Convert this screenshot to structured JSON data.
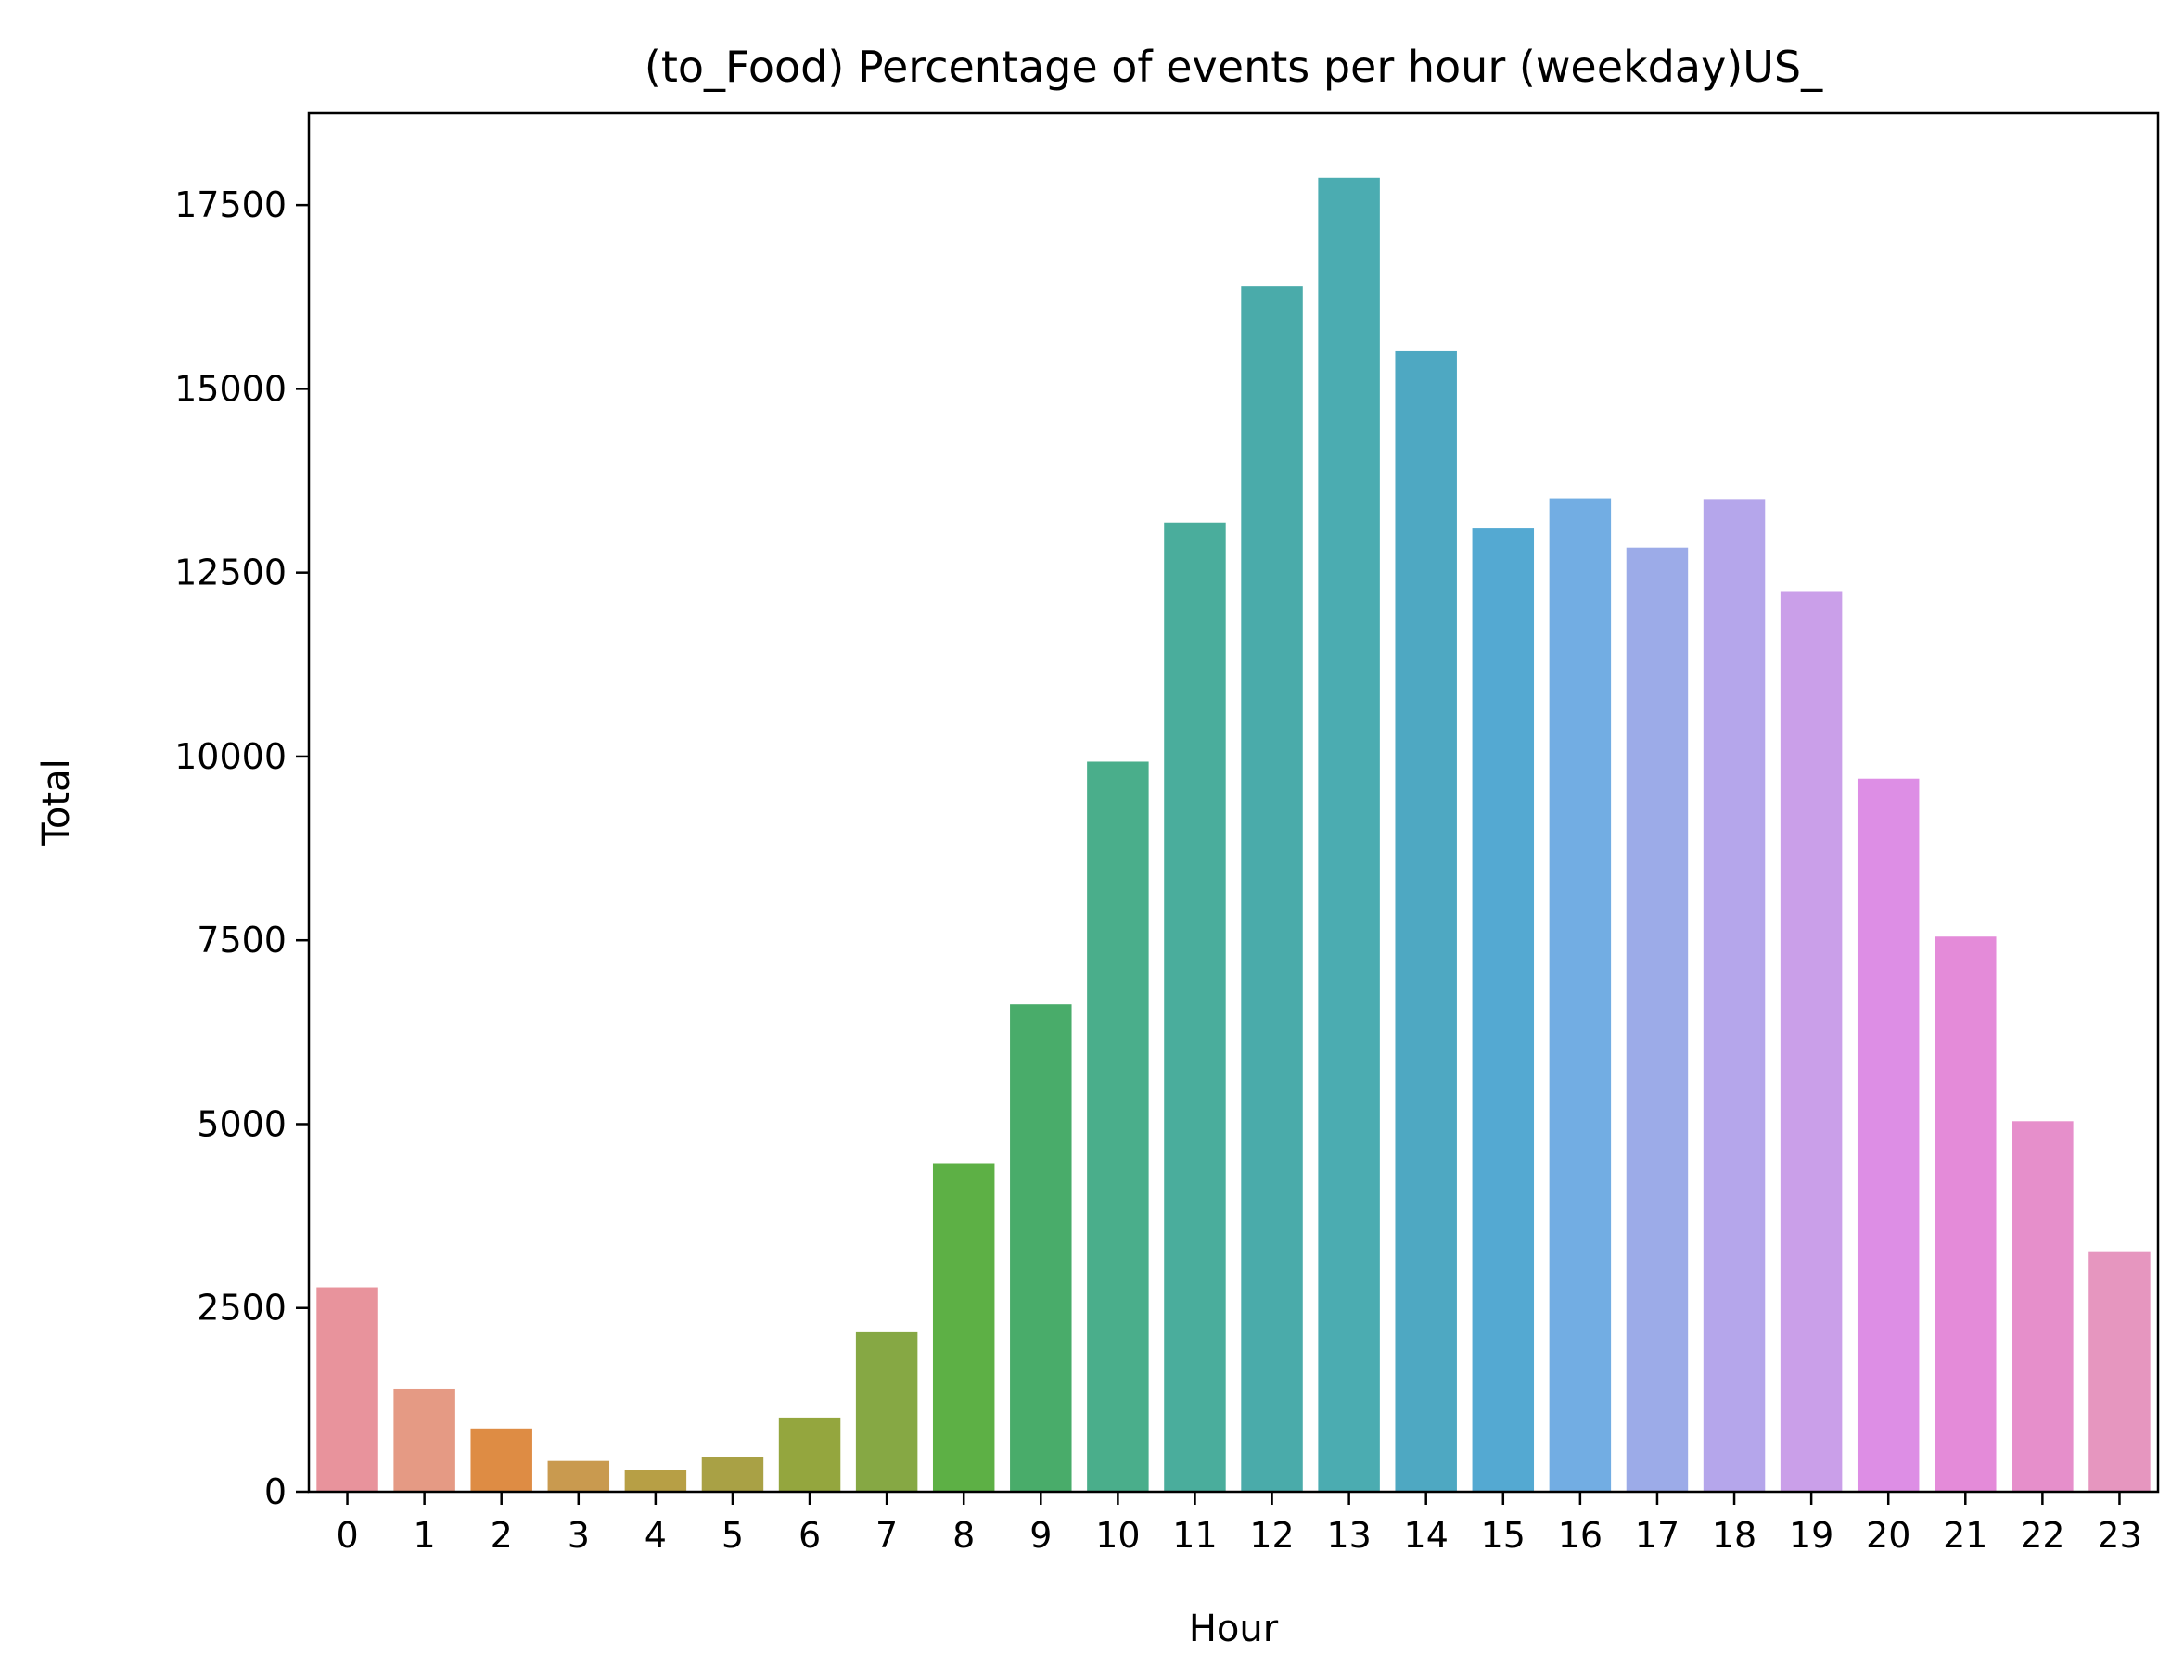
{
  "chart_data": {
    "type": "bar",
    "title": "(to_Food) Percentage of events per hour (weekday)US_",
    "xlabel": "Hour",
    "ylabel": "Total",
    "categories": [
      "0",
      "1",
      "2",
      "3",
      "4",
      "5",
      "6",
      "7",
      "8",
      "9",
      "10",
      "11",
      "12",
      "13",
      "14",
      "15",
      "16",
      "17",
      "18",
      "19",
      "20",
      "21",
      "22",
      "23"
    ],
    "values": [
      2780,
      1400,
      860,
      420,
      290,
      470,
      1010,
      2170,
      4470,
      6630,
      9930,
      13180,
      16390,
      17870,
      15510,
      13100,
      13510,
      12840,
      13500,
      12250,
      9700,
      7550,
      5040,
      3270
    ],
    "colors": [
      "#e8939c",
      "#e59a84",
      "#de8c44",
      "#c99a4f",
      "#b79f45",
      "#a9a145",
      "#94a63e",
      "#86a844",
      "#5db045",
      "#49ac6a",
      "#4aae8b",
      "#4aad9c",
      "#4aabaa",
      "#4bacb1",
      "#4ea8c2",
      "#54a9d2",
      "#72ade3",
      "#9cabe8",
      "#b5a6eb",
      "#ca9fe9",
      "#dd8ee5",
      "#e48bd9",
      "#e68fcb",
      "#e696bf"
    ],
    "yticks": [
      0,
      2500,
      5000,
      7500,
      10000,
      12500,
      15000,
      17500
    ],
    "ylim": [
      0,
      18750
    ],
    "grid": false,
    "legend": "none"
  }
}
